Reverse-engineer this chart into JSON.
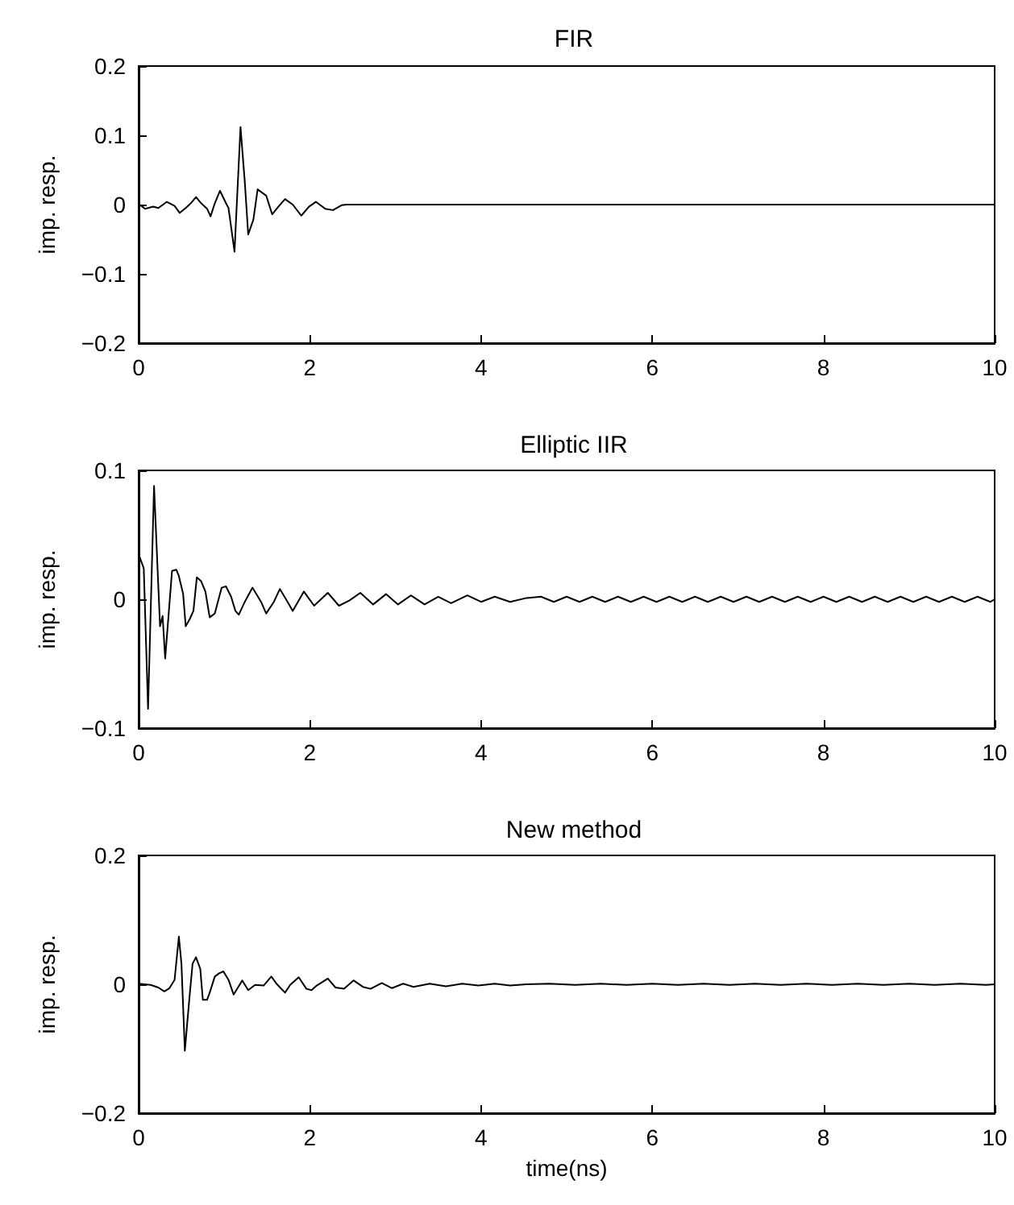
{
  "chart_data": [
    {
      "type": "line",
      "title": "FIR",
      "ylabel": "imp. resp.",
      "color": "#000000",
      "x": [
        0,
        0.01,
        0.075,
        0.17,
        0.23,
        0.33,
        0.42,
        0.48,
        0.55,
        0.61,
        0.67,
        0.73,
        0.8,
        0.84,
        0.89,
        0.95,
        1.02,
        1.05,
        1.12,
        1.19,
        1.24,
        1.28,
        1.34,
        1.39,
        1.49,
        1.56,
        1.64,
        1.71,
        1.8,
        1.9,
        1.99,
        2.07,
        2.18,
        2.27,
        2.37,
        2.43,
        10
      ],
      "values": [
        0.002,
        0,
        -0.006,
        -0.003,
        -0.005,
        0.004,
        -0.002,
        -0.012,
        -0.005,
        0.002,
        0.011,
        0.002,
        -0.006,
        -0.017,
        0.002,
        0.02,
        0.002,
        -0.005,
        -0.068,
        0.112,
        0.033,
        -0.043,
        -0.022,
        0.022,
        0.013,
        -0.014,
        -0.002,
        0.008,
        0,
        -0.016,
        -0.003,
        0.004,
        -0.006,
        -0.008,
        -0.001,
        0,
        0
      ],
      "xlim": [
        0,
        10
      ],
      "xticks": [
        0,
        2,
        4,
        6,
        8,
        10
      ],
      "ylim": [
        -0.2,
        0.2
      ],
      "yticks": [
        {
          "value": -0.2,
          "label": "−0.2"
        },
        {
          "value": -0.1,
          "label": "−0.1"
        },
        0,
        0.1,
        0.2
      ]
    },
    {
      "type": "line",
      "title": "Elliptic IIR",
      "ylabel": "imp. resp.",
      "color": "#000000",
      "x": [
        0,
        0.06,
        0.11,
        0.18,
        0.25,
        0.28,
        0.31,
        0.39,
        0.44,
        0.47,
        0.52,
        0.55,
        0.6,
        0.64,
        0.68,
        0.73,
        0.78,
        0.83,
        0.89,
        0.97,
        1.02,
        1.08,
        1.13,
        1.17,
        1.24,
        1.33,
        1.43,
        1.49,
        1.58,
        1.65,
        1.74,
        1.8,
        1.93,
        2.05,
        2.21,
        2.34,
        2.46,
        2.59,
        2.74,
        2.89,
        3.03,
        3.18,
        3.34,
        3.5,
        3.65,
        3.84,
        4,
        4.16,
        4.34,
        4.53,
        4.7,
        4.85,
        5.0,
        5.15,
        5.3,
        5.45,
        5.6,
        5.75,
        5.9,
        6.05,
        6.2,
        6.35,
        6.5,
        6.65,
        6.8,
        6.95,
        7.1,
        7.25,
        7.4,
        7.55,
        7.7,
        7.85,
        8.0,
        8.15,
        8.3,
        8.45,
        8.6,
        8.75,
        8.9,
        9.05,
        9.2,
        9.35,
        9.5,
        9.65,
        9.8,
        9.95,
        10
      ],
      "values": [
        0.035,
        0.024,
        -0.085,
        0.088,
        -0.021,
        -0.013,
        -0.046,
        0.022,
        0.023,
        0.018,
        0.004,
        -0.021,
        -0.015,
        -0.009,
        0.017,
        0.014,
        0.006,
        -0.014,
        -0.011,
        0.009,
        0.01,
        0.002,
        -0.009,
        -0.012,
        -0.002,
        0.009,
        -0.002,
        -0.011,
        -0.002,
        0.008,
        -0.002,
        -0.009,
        0.006,
        -0.005,
        0.005,
        -0.005,
        -0.001,
        0.005,
        -0.004,
        0.004,
        -0.004,
        0.003,
        -0.004,
        0.002,
        -0.003,
        0.003,
        -0.002,
        0.002,
        -0.002,
        0.001,
        0.002,
        -0.002,
        0.002,
        -0.002,
        0.002,
        -0.002,
        0.002,
        -0.002,
        0.002,
        -0.002,
        0.002,
        -0.002,
        0.002,
        -0.002,
        0.002,
        -0.002,
        0.002,
        -0.002,
        0.002,
        -0.002,
        0.002,
        -0.002,
        0.002,
        -0.002,
        0.002,
        -0.002,
        0.002,
        -0.002,
        0.002,
        -0.002,
        0.002,
        -0.002,
        0.002,
        -0.002,
        0.002,
        -0.002,
        0
      ],
      "xlim": [
        0,
        10
      ],
      "xticks": [
        0,
        2,
        4,
        6,
        8,
        10
      ],
      "ylim": [
        -0.1,
        0.1
      ],
      "yticks": [
        {
          "value": -0.1,
          "label": "−0.1"
        },
        0,
        0.1
      ]
    },
    {
      "type": "line",
      "title": "New method",
      "xlabel": "time(ns)",
      "ylabel": "imp. resp.",
      "color": "#000000",
      "x": [
        0,
        0.14,
        0.23,
        0.3,
        0.36,
        0.42,
        0.47,
        0.5,
        0.54,
        0.59,
        0.63,
        0.67,
        0.72,
        0.75,
        0.8,
        0.83,
        0.89,
        0.94,
        0.99,
        1.05,
        1.11,
        1.21,
        1.28,
        1.36,
        1.46,
        1.55,
        1.61,
        1.71,
        1.77,
        1.87,
        1.96,
        2.02,
        2.08,
        2.21,
        2.3,
        2.4,
        2.51,
        2.62,
        2.71,
        2.84,
        2.96,
        3.09,
        3.21,
        3.4,
        3.59,
        3.78,
        3.97,
        4.16,
        4.34,
        4.53,
        4.8,
        5.1,
        5.4,
        5.7,
        6.0,
        6.3,
        6.6,
        6.9,
        7.2,
        7.5,
        7.8,
        8.1,
        8.4,
        8.7,
        9.0,
        9.3,
        9.6,
        9.9,
        10
      ],
      "values": [
        0.001,
        -0.001,
        -0.005,
        -0.011,
        -0.006,
        0.007,
        0.074,
        0.032,
        -0.103,
        -0.026,
        0.032,
        0.042,
        0.024,
        -0.024,
        -0.024,
        -0.013,
        0.012,
        0.017,
        0.02,
        0.007,
        -0.016,
        0.006,
        -0.009,
        -0.001,
        -0.002,
        0.012,
        0.001,
        -0.013,
        -0.001,
        0.011,
        -0.007,
        -0.009,
        -0.002,
        0.009,
        -0.005,
        -0.007,
        0.006,
        -0.004,
        -0.007,
        0.002,
        -0.006,
        0.001,
        -0.004,
        0.001,
        -0.003,
        0.001,
        -0.002,
        0.001,
        -0.002,
        0,
        0.001,
        -0.001,
        0.001,
        -0.001,
        0.001,
        -0.001,
        0.001,
        -0.001,
        0.001,
        -0.001,
        0.001,
        -0.001,
        0.001,
        -0.001,
        0.001,
        -0.001,
        0.001,
        -0.001,
        0
      ],
      "xlim": [
        0,
        10
      ],
      "xticks": [
        0,
        2,
        4,
        6,
        8,
        10
      ],
      "ylim": [
        -0.2,
        0.2
      ],
      "yticks": [
        {
          "value": -0.2,
          "label": "−0.2"
        },
        0,
        {
          "value": 0.2,
          "label": "0.2"
        }
      ]
    }
  ]
}
